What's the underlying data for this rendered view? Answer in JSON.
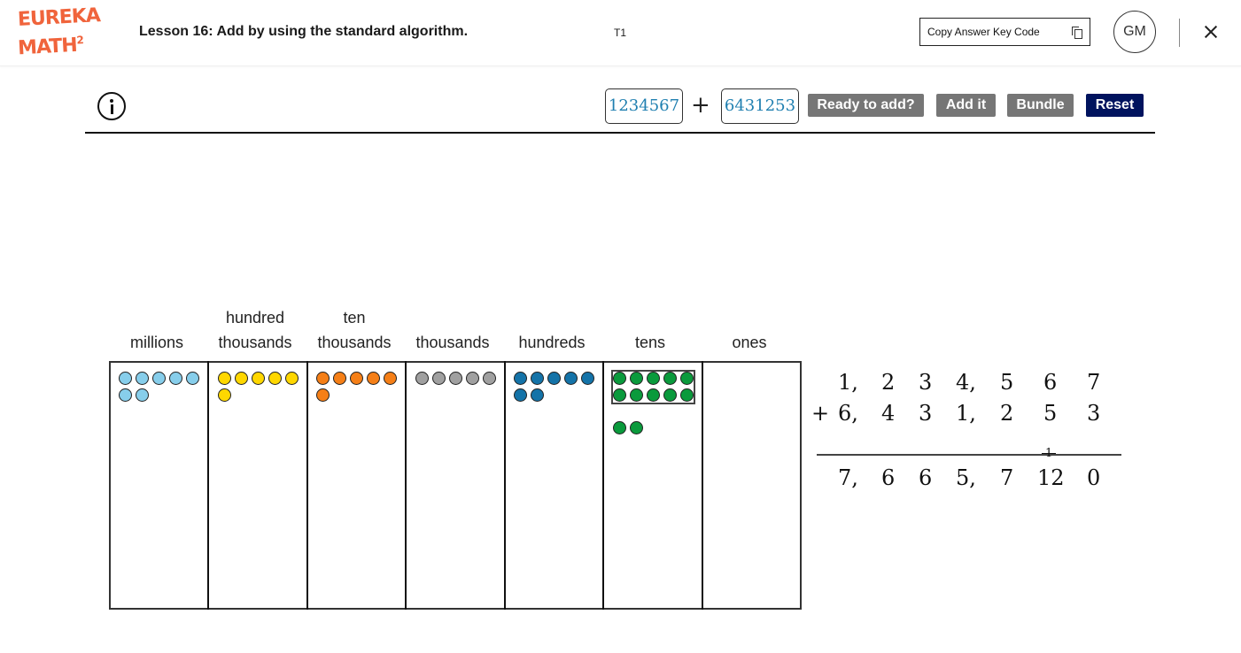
{
  "header": {
    "logo_line1": "EUREKA",
    "logo_line2": "MATH",
    "logo_sup": "2",
    "lesson_title": "Lesson 16: Add by using the standard algorithm.",
    "screen_code": "T1",
    "copy_label": "Copy Answer Key Code",
    "avatar_initials": "GM"
  },
  "toolbar": {
    "addend1": "1234567",
    "plus": "+",
    "addend2": "6431253",
    "ready_label": "Ready to add?",
    "add_label": "Add it",
    "bundle_label": "Bundle",
    "reset_label": "Reset"
  },
  "chart": {
    "columns": [
      {
        "line1": "",
        "line2": "millions",
        "disks": 7,
        "color": "#87ceeb"
      },
      {
        "line1": "hundred",
        "line2": "thousands",
        "disks": 6,
        "color": "#ffd700"
      },
      {
        "line1": "ten",
        "line2": "thousands",
        "disks": 6,
        "color": "#f57f17"
      },
      {
        "line1": "",
        "line2": "thousands",
        "disks": 5,
        "color": "#a0a0a0"
      },
      {
        "line1": "",
        "line2": "hundreds",
        "disks": 7,
        "color": "#1473a8"
      },
      {
        "line1": "",
        "line2": "tens",
        "disks": 12,
        "bundled": 10,
        "color": "#0a9a3c"
      },
      {
        "line1": "",
        "line2": "ones",
        "disks": 0,
        "color": "#ffffff"
      }
    ]
  },
  "algorithm": {
    "row1": [
      "1,",
      "2",
      "3",
      "4,",
      "5",
      "6",
      "7"
    ],
    "row2_prefix": "+",
    "row2": [
      "6,",
      "4",
      "3",
      "1,",
      "2",
      "5",
      "3"
    ],
    "carry": "1",
    "result": [
      "7,",
      "6",
      "6",
      "5,",
      "7",
      "12",
      "0"
    ]
  }
}
